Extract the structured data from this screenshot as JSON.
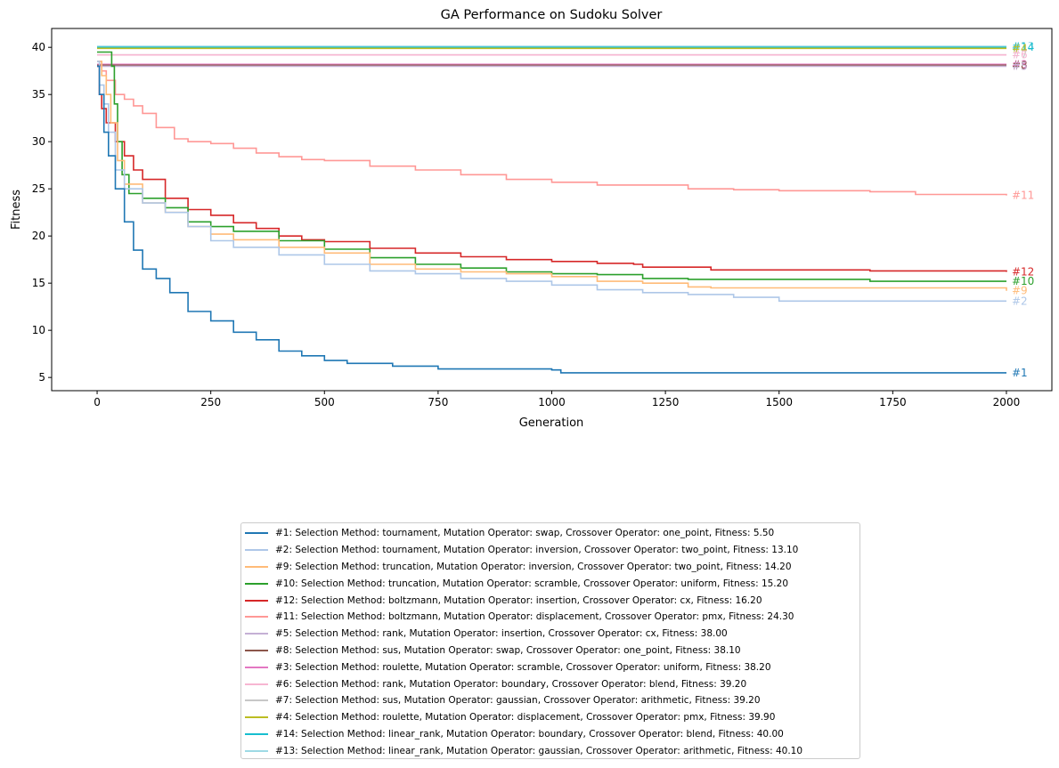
{
  "chart_data": {
    "type": "line",
    "title": "GA Performance on Sudoku Solver",
    "xlabel": "Generation",
    "ylabel": "Fitness",
    "xlim": [
      -100,
      2100
    ],
    "ylim": [
      3.6,
      42.0
    ],
    "xticks": [
      0,
      250,
      500,
      750,
      1000,
      1250,
      1500,
      1750,
      2000
    ],
    "yticks": [
      5,
      10,
      15,
      20,
      25,
      30,
      35,
      40
    ],
    "grid": false,
    "legend_position": "below",
    "series": [
      {
        "tag": "#1",
        "label": "#1: Selection Method: tournament, Mutation Operator: swap, Crossover Operator: one_point, Fitness: 5.50",
        "color": "#1f77b4",
        "points": [
          [
            0,
            38
          ],
          [
            5,
            35
          ],
          [
            15,
            31
          ],
          [
            25,
            28.5
          ],
          [
            40,
            25
          ],
          [
            60,
            21.5
          ],
          [
            80,
            18.5
          ],
          [
            100,
            16.5
          ],
          [
            130,
            15.5
          ],
          [
            160,
            14
          ],
          [
            200,
            12
          ],
          [
            250,
            11
          ],
          [
            300,
            9.8
          ],
          [
            350,
            9
          ],
          [
            400,
            7.8
          ],
          [
            450,
            7.3
          ],
          [
            500,
            6.8
          ],
          [
            550,
            6.5
          ],
          [
            650,
            6.2
          ],
          [
            750,
            5.9
          ],
          [
            1000,
            5.8
          ],
          [
            1020,
            5.5
          ],
          [
            2000,
            5.5
          ]
        ]
      },
      {
        "tag": "#2",
        "label": "#2: Selection Method: tournament, Mutation Operator: inversion, Crossover Operator: two_point, Fitness: 13.10",
        "color": "#aec7e8",
        "points": [
          [
            0,
            38.5
          ],
          [
            5,
            36
          ],
          [
            15,
            34
          ],
          [
            25,
            31
          ],
          [
            40,
            27
          ],
          [
            60,
            25
          ],
          [
            100,
            23.5
          ],
          [
            150,
            22.5
          ],
          [
            200,
            21
          ],
          [
            250,
            19.5
          ],
          [
            300,
            18.8
          ],
          [
            400,
            18
          ],
          [
            500,
            17
          ],
          [
            600,
            16.3
          ],
          [
            700,
            16
          ],
          [
            800,
            15.5
          ],
          [
            900,
            15.2
          ],
          [
            1000,
            14.8
          ],
          [
            1100,
            14.3
          ],
          [
            1200,
            14
          ],
          [
            1300,
            13.8
          ],
          [
            1400,
            13.5
          ],
          [
            1500,
            13.1
          ],
          [
            2000,
            13.1
          ]
        ]
      },
      {
        "tag": "#9",
        "label": "#9: Selection Method: truncation, Mutation Operator: inversion, Crossover Operator: two_point, Fitness: 14.20",
        "color": "#ffbb78",
        "points": [
          [
            0,
            38.5
          ],
          [
            10,
            37
          ],
          [
            20,
            35
          ],
          [
            30,
            32
          ],
          [
            45,
            28
          ],
          [
            60,
            25.5
          ],
          [
            100,
            23.5
          ],
          [
            150,
            22.5
          ],
          [
            200,
            21
          ],
          [
            250,
            20.2
          ],
          [
            300,
            19.6
          ],
          [
            400,
            18.8
          ],
          [
            500,
            18.2
          ],
          [
            600,
            17
          ],
          [
            700,
            16.5
          ],
          [
            800,
            16.2
          ],
          [
            900,
            16
          ],
          [
            1000,
            15.7
          ],
          [
            1100,
            15.2
          ],
          [
            1200,
            15
          ],
          [
            1300,
            14.6
          ],
          [
            1350,
            14.5
          ],
          [
            1950,
            14.5
          ],
          [
            2000,
            14.2
          ]
        ]
      },
      {
        "tag": "#10",
        "label": "#10: Selection Method: truncation, Mutation Operator: scramble, Crossover Operator: uniform, Fitness: 15.20",
        "color": "#2ca02c",
        "points": [
          [
            0,
            39.5
          ],
          [
            25,
            39.5
          ],
          [
            32,
            38
          ],
          [
            38,
            34
          ],
          [
            45,
            30
          ],
          [
            55,
            26.5
          ],
          [
            70,
            24.5
          ],
          [
            100,
            24
          ],
          [
            150,
            23
          ],
          [
            200,
            21.5
          ],
          [
            250,
            21
          ],
          [
            300,
            20.5
          ],
          [
            400,
            19.5
          ],
          [
            500,
            18.6
          ],
          [
            600,
            17.7
          ],
          [
            700,
            17
          ],
          [
            800,
            16.6
          ],
          [
            900,
            16.2
          ],
          [
            1000,
            16
          ],
          [
            1100,
            15.9
          ],
          [
            1200,
            15.5
          ],
          [
            1300,
            15.4
          ],
          [
            1700,
            15.2
          ],
          [
            2000,
            15.2
          ]
        ]
      },
      {
        "tag": "#12",
        "label": "#12: Selection Method: boltzmann, Mutation Operator: insertion, Crossover Operator: cx, Fitness: 16.20",
        "color": "#d62728",
        "points": [
          [
            0,
            38
          ],
          [
            5,
            35
          ],
          [
            10,
            33.5
          ],
          [
            20,
            32
          ],
          [
            40,
            30
          ],
          [
            60,
            28.5
          ],
          [
            80,
            27
          ],
          [
            100,
            26
          ],
          [
            150,
            24
          ],
          [
            200,
            22.8
          ],
          [
            250,
            22.2
          ],
          [
            300,
            21.4
          ],
          [
            350,
            20.8
          ],
          [
            400,
            20
          ],
          [
            450,
            19.6
          ],
          [
            500,
            19.4
          ],
          [
            600,
            18.7
          ],
          [
            700,
            18.2
          ],
          [
            800,
            17.8
          ],
          [
            900,
            17.5
          ],
          [
            1000,
            17.3
          ],
          [
            1100,
            17.1
          ],
          [
            1180,
            17
          ],
          [
            1200,
            16.7
          ],
          [
            1350,
            16.4
          ],
          [
            1700,
            16.3
          ],
          [
            2000,
            16.2
          ]
        ]
      },
      {
        "tag": "#11",
        "label": "#11: Selection Method: boltzmann, Mutation Operator: displacement, Crossover Operator: pmx, Fitness: 24.30",
        "color": "#ff9896",
        "points": [
          [
            0,
            38.5
          ],
          [
            10,
            37.5
          ],
          [
            20,
            36.5
          ],
          [
            40,
            35
          ],
          [
            60,
            34.5
          ],
          [
            80,
            33.8
          ],
          [
            100,
            33
          ],
          [
            130,
            31.5
          ],
          [
            170,
            30.3
          ],
          [
            200,
            30
          ],
          [
            250,
            29.8
          ],
          [
            300,
            29.3
          ],
          [
            350,
            28.8
          ],
          [
            400,
            28.4
          ],
          [
            450,
            28.1
          ],
          [
            500,
            28
          ],
          [
            600,
            27.4
          ],
          [
            700,
            27
          ],
          [
            800,
            26.5
          ],
          [
            900,
            26
          ],
          [
            1000,
            25.7
          ],
          [
            1100,
            25.4
          ],
          [
            1200,
            25.4
          ],
          [
            1300,
            25
          ],
          [
            1400,
            24.9
          ],
          [
            1500,
            24.8
          ],
          [
            1600,
            24.8
          ],
          [
            1700,
            24.7
          ],
          [
            1800,
            24.4
          ],
          [
            2000,
            24.3
          ]
        ]
      },
      {
        "tag": "#5",
        "label": "#5: Selection Method: rank, Mutation Operator: insertion, Crossover Operator: cx, Fitness: 38.00",
        "color": "#c5b0d5",
        "points": [
          [
            0,
            38
          ],
          [
            2000,
            38
          ]
        ]
      },
      {
        "tag": "#8",
        "label": "#8: Selection Method: sus, Mutation Operator: swap, Crossover Operator: one_point, Fitness: 38.10",
        "color": "#8c564b",
        "points": [
          [
            0,
            38.1
          ],
          [
            2000,
            38.1
          ]
        ]
      },
      {
        "tag": "#3",
        "label": "#3: Selection Method: roulette, Mutation Operator: scramble, Crossover Operator: uniform, Fitness: 38.20",
        "color": "#e377c2",
        "points": [
          [
            0,
            38.2
          ],
          [
            2000,
            38.2
          ]
        ]
      },
      {
        "tag": "#6",
        "label": "#6: Selection Method: rank, Mutation Operator: boundary, Crossover Operator: blend, Fitness: 39.20",
        "color": "#f7b6d2",
        "points": [
          [
            0,
            39.2
          ],
          [
            2000,
            39.2
          ]
        ]
      },
      {
        "tag": "#7",
        "label": "#7: Selection Method: sus, Mutation Operator: gaussian, Crossover Operator: arithmetic, Fitness: 39.20",
        "color": "#c7c7c7",
        "points": [
          [
            0,
            39.2
          ],
          [
            2000,
            39.2
          ]
        ]
      },
      {
        "tag": "#4",
        "label": "#4: Selection Method: roulette, Mutation Operator: displacement, Crossover Operator: pmx, Fitness: 39.90",
        "color": "#bcbd22",
        "points": [
          [
            0,
            39.9
          ],
          [
            2000,
            39.9
          ]
        ]
      },
      {
        "tag": "#14",
        "label": "#14: Selection Method: linear_rank, Mutation Operator: boundary, Crossover Operator: blend, Fitness: 40.00",
        "color": "#17becf",
        "points": [
          [
            0,
            40
          ],
          [
            2000,
            40
          ]
        ]
      },
      {
        "tag": "#13",
        "label": "#13: Selection Method: linear_rank, Mutation Operator: gaussian, Crossover Operator: arithmetic, Fitness: 40.10",
        "color": "#9edae5",
        "points": [
          [
            0,
            40.1
          ],
          [
            2000,
            40.1
          ]
        ]
      }
    ]
  }
}
